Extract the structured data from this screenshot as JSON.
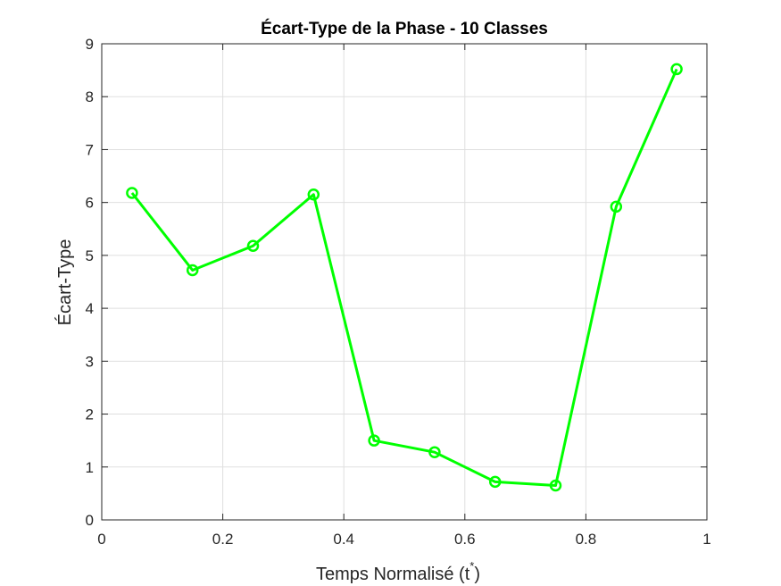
{
  "chart_data": {
    "type": "line",
    "title": "Écart-Type de la Phase - 10 Classes",
    "xlabel": "Temps Normalisé (t",
    "xlabel_sup": "*",
    "xlabel_close": ")",
    "ylabel": "Écart-Type",
    "xlim": [
      0,
      1
    ],
    "ylim": [
      0,
      9
    ],
    "xticks": [
      0,
      0.2,
      0.4,
      0.6,
      0.8,
      1
    ],
    "xtick_labels": [
      "0",
      "0.2",
      "0.4",
      "0.6",
      "0.8",
      "1"
    ],
    "yticks": [
      0,
      1,
      2,
      3,
      4,
      5,
      6,
      7,
      8,
      9
    ],
    "ytick_labels": [
      "0",
      "1",
      "2",
      "3",
      "4",
      "5",
      "6",
      "7",
      "8",
      "9"
    ],
    "grid": true,
    "legend": false,
    "series": [
      {
        "color": "#00ff00",
        "marker": "circle",
        "x": [
          0.05,
          0.15,
          0.25,
          0.35,
          0.45,
          0.55,
          0.65,
          0.75,
          0.85,
          0.95
        ],
        "y": [
          6.18,
          4.72,
          5.18,
          6.15,
          1.5,
          1.28,
          0.72,
          0.65,
          5.92,
          8.52
        ]
      }
    ]
  }
}
